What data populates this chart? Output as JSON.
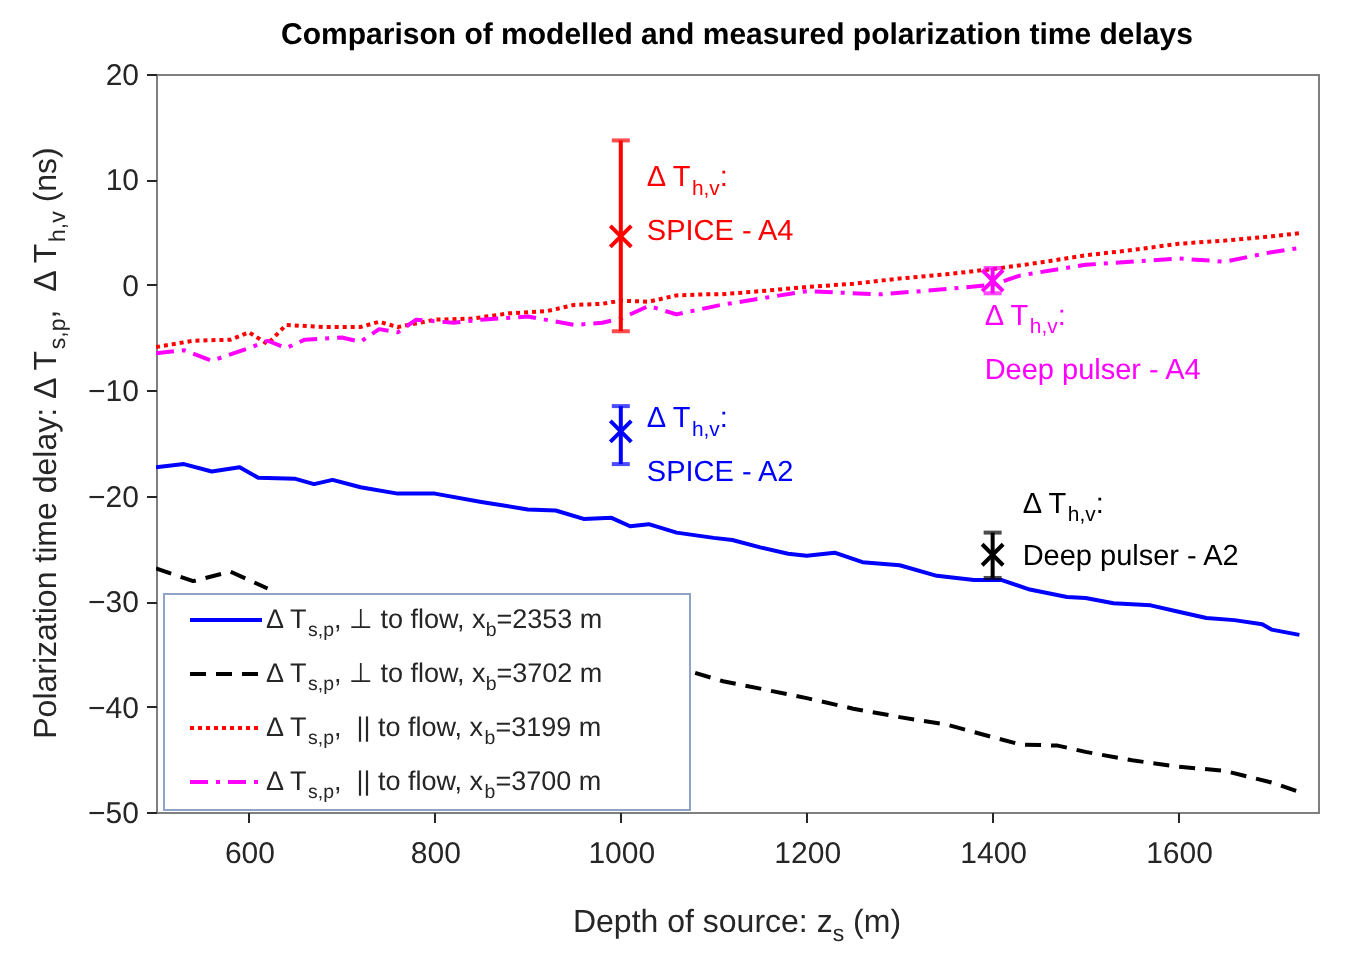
{
  "chart_data": {
    "type": "line",
    "title": "Comparison of modelled and measured polarization time delays",
    "xlabel": "Depth of source: z$_{s}$ (m)",
    "ylabel": "Polarization time delay: Δ T$_{s,p}$,  Δ T$_{h,v}$ (ns)",
    "xlim": [
      500,
      1750
    ],
    "xticks": [
      600,
      800,
      1000,
      1200,
      1400,
      1600
    ],
    "ylim": [
      -50,
      20
    ],
    "yticks": [
      -50,
      -40,
      -30,
      -20,
      -10,
      0,
      10,
      20
    ],
    "grid": false,
    "legend": "bottom left",
    "series": [
      {
        "name": "Δ T$_{s,p}$, ⊥ to flow, x$_{b}$=2353 m",
        "color": "#0000ff",
        "line_style": "solid",
        "x": [
          500,
          530,
          560,
          590,
          610,
          650,
          670,
          690,
          720,
          760,
          800,
          850,
          900,
          930,
          960,
          990,
          1010,
          1030,
          1060,
          1100,
          1120,
          1150,
          1180,
          1200,
          1230,
          1260,
          1300,
          1340,
          1380,
          1410,
          1440,
          1480,
          1500,
          1530,
          1570,
          1600,
          1630,
          1660,
          1690,
          1700,
          1730
        ],
        "values": [
          -17.3,
          -17.0,
          -17.7,
          -17.3,
          -18.3,
          -18.4,
          -18.9,
          -18.5,
          -19.2,
          -19.8,
          -19.8,
          -20.6,
          -21.3,
          -21.4,
          -22.2,
          -22.1,
          -22.9,
          -22.7,
          -23.5,
          -24.0,
          -24.2,
          -24.9,
          -25.5,
          -25.7,
          -25.4,
          -26.3,
          -26.6,
          -27.6,
          -28.0,
          -28.0,
          -28.9,
          -29.6,
          -29.7,
          -30.2,
          -30.4,
          -31.0,
          -31.6,
          -31.8,
          -32.2,
          -32.7,
          -33.2
        ]
      },
      {
        "name": "Δ T$_{s,p}$, ⊥ to flow, x$_{b}$=3702 m",
        "color": "#000000",
        "line_style": "dashed",
        "x": [
          500,
          540,
          580,
          610,
          620,
          850,
          1080,
          1110,
          1150,
          1200,
          1250,
          1300,
          1350,
          1400,
          1430,
          1470,
          1500,
          1550,
          1600,
          1650,
          1700,
          1730
        ],
        "values": [
          -26.9,
          -28.1,
          -27.2,
          -28.4,
          -28.8,
          null,
          -36.8,
          -37.6,
          -38.3,
          -39.2,
          -40.2,
          -41.0,
          -41.7,
          -42.9,
          -43.6,
          -43.7,
          -44.3,
          -45.1,
          -45.7,
          -46.1,
          -47.2,
          -48.1
        ]
      },
      {
        "name": "Δ T$_{s,p}$,  || to flow, x$_{b}$=3199 m",
        "color": "#ff0000",
        "line_style": "dotted",
        "x": [
          500,
          540,
          580,
          600,
          620,
          640,
          680,
          720,
          740,
          760,
          800,
          840,
          880,
          920,
          950,
          980,
          1000,
          1030,
          1060,
          1090,
          1108,
          1150,
          1200,
          1250,
          1300,
          1350,
          1400,
          1450,
          1500,
          1550,
          1600,
          1650,
          1700,
          1730
        ],
        "values": [
          -5.9,
          -5.3,
          -5.2,
          -4.5,
          -5.6,
          -3.8,
          -4.0,
          -4.0,
          -3.5,
          -4.0,
          -3.3,
          -3.2,
          -2.7,
          -2.5,
          -1.9,
          -1.8,
          -1.5,
          -1.6,
          -1.0,
          -0.9,
          -0.9,
          -0.6,
          -0.2,
          0.1,
          0.6,
          1.0,
          1.5,
          2.1,
          2.8,
          3.3,
          3.9,
          4.2,
          4.6,
          4.9
        ]
      },
      {
        "name": "Δ T$_{s,p}$,  || to flow, x$_{b}$=3700 m",
        "color": "#ff00ff",
        "line_style": "dashdot",
        "x": [
          500,
          530,
          560,
          600,
          620,
          640,
          660,
          700,
          720,
          740,
          760,
          780,
          820,
          850,
          900,
          950,
          980,
          1000,
          1030,
          1060,
          1108,
          1150,
          1200,
          1280,
          1350,
          1400,
          1430,
          1500,
          1600,
          1650,
          1700,
          1730
        ],
        "values": [
          -6.5,
          -6.2,
          -7.2,
          -6.0,
          -5.3,
          -6.0,
          -5.2,
          -5.0,
          -5.4,
          -4.2,
          -4.5,
          -3.3,
          -3.6,
          -3.3,
          -3.0,
          -3.8,
          -3.6,
          -3.2,
          -2.0,
          -2.8,
          -1.9,
          -1.3,
          -0.6,
          -0.9,
          -0.4,
          0.0,
          0.9,
          1.9,
          2.5,
          2.2,
          3.1,
          3.5
        ]
      },
      {
        "type": "scatter",
        "marker": "cross",
        "color": "#ff0000",
        "x": [
          1000
        ],
        "values": [
          4.6
        ],
        "errors": [
          [
            -4.4,
            13.7
          ]
        ]
      },
      {
        "type": "scatter",
        "marker": "cross",
        "color": "#0000ff",
        "x": [
          1000
        ],
        "values": [
          -13.9
        ],
        "errors": [
          [
            -17.0,
            -11.5
          ]
        ]
      },
      {
        "type": "scatter",
        "marker": "cross",
        "color": "#ff00ff",
        "x": [
          1400
        ],
        "values": [
          0.4
        ],
        "errors": [
          [
            -0.8,
            1.6
          ]
        ]
      },
      {
        "type": "scatter",
        "marker": "cross",
        "color": "#000000",
        "x": [
          1400
        ],
        "values": [
          -25.6
        ],
        "errors": [
          [
            -27.8,
            -23.5
          ]
        ]
      }
    ],
    "annotations": [
      "Δ T$_{h,v}$:\nSPICE - A4",
      "Δ T$_{h,v}$:\nSPICE - A2",
      "Δ T$_{h,v}$:\nDeep pulser - A4",
      "Δ T$_{h,v}$:\nDeep pulser - A2"
    ]
  }
}
